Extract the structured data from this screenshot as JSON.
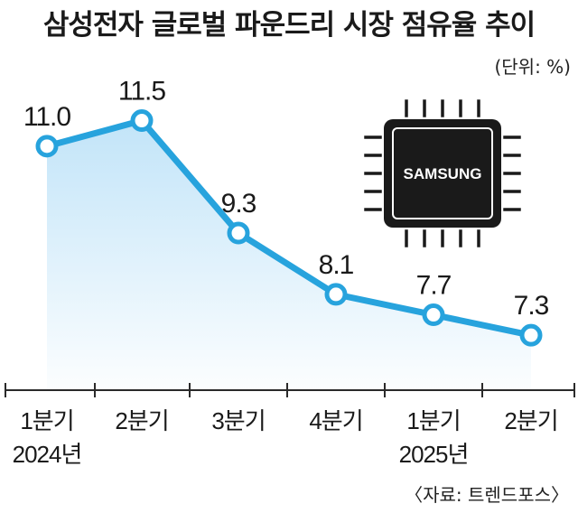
{
  "chart_data": {
    "type": "line",
    "title": "삼성전자 글로벌 파운드리 시장 점유율 추이",
    "unit": "(단위: %)",
    "source": "〈자료: 트렌드포스〉",
    "categories": [
      "1분기",
      "2분기",
      "3분기",
      "4분기",
      "1분기",
      "2분기"
    ],
    "year_labels": [
      "2024년",
      "",
      "",
      "",
      "2025년",
      ""
    ],
    "values": [
      11.0,
      11.5,
      9.3,
      8.1,
      7.7,
      7.3
    ],
    "value_labels": [
      "11.0",
      "11.5",
      "9.3",
      "8.1",
      "7.7",
      "7.3"
    ],
    "ylim": [
      5.2,
      12.8
    ],
    "grid": false,
    "line_color": "#27a3dd",
    "area_color": "#d3ecfa"
  },
  "chip": {
    "label": "SAMSUNG"
  }
}
